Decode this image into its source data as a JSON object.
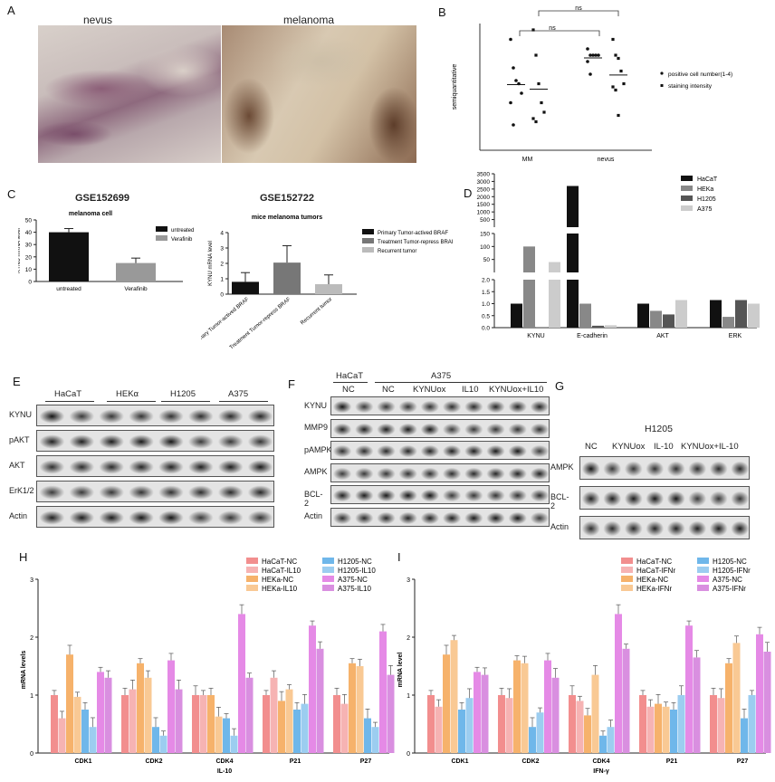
{
  "panels": {
    "A": {
      "letter": "A",
      "left_title": "nevus",
      "right_title": "melanoma"
    },
    "B": {
      "letter": "B",
      "ylabel": "semiquantitative",
      "ns1": "ns",
      "ns2": "ns",
      "legend": [
        "positive cell number(1-4)",
        "staining intensity"
      ],
      "categories": [
        "MM",
        "nevus"
      ]
    },
    "C": {
      "letter": "C",
      "title1": "GSE152699",
      "title2": "GSE152722"
    },
    "D": {
      "letter": "D"
    },
    "E": {
      "letter": "E",
      "groups": [
        "HaCaT",
        "HEKα",
        "H1205",
        "A375"
      ],
      "rows": [
        "KYNU",
        "pAKT",
        "AKT",
        "ErK1/2",
        "Actin"
      ]
    },
    "F": {
      "letter": "F",
      "top": [
        "HaCaT",
        "A375"
      ],
      "cols": [
        "NC",
        "NC",
        "KYNUox",
        "IL10",
        "KYNUox+IL10"
      ],
      "rows": [
        "KYNU",
        "MMP9",
        "pAMPK",
        "AMPK",
        "BCL-2",
        "Actin"
      ]
    },
    "G": {
      "letter": "G",
      "title": "H1205",
      "cols": [
        "NC",
        "KYNUox",
        "IL-10",
        "KYNUox+IL-10"
      ],
      "rows": [
        "AMPK",
        "BCL-2",
        "Actin"
      ]
    },
    "H": {
      "letter": "H",
      "ylabel": "mRNA levels",
      "xtitle": "IL-10"
    },
    "I": {
      "letter": "I",
      "ylabel": "mRNA level",
      "xtitle": "IFN-γ"
    }
  },
  "chart_data": [
    {
      "id": "B",
      "type": "scatter",
      "ylabel": "semiquantitative",
      "categories": [
        "MM",
        "nevus"
      ],
      "series": [
        {
          "name": "positive cell number(1-4)",
          "MM": [
            3.5,
            2.6,
            2.2,
            2.1,
            1.8,
            1.5,
            0.8
          ],
          "nevus": [
            3.2,
            3.0,
            3.0,
            3.0,
            3.0,
            2.8,
            2.4
          ]
        },
        {
          "name": "staining intensity",
          "MM": [
            3.8,
            3.0,
            2.1,
            1.5,
            1.2,
            1.0,
            0.9
          ],
          "nevus": [
            3.5,
            3.0,
            2.9,
            2.5,
            2.1,
            2.0,
            1.9,
            1.1
          ]
        }
      ]
    },
    {
      "id": "C1",
      "type": "bar",
      "title": "melanoma cell",
      "ylabel": "KYNU mRNA level",
      "ylim": [
        0,
        50
      ],
      "yticks": [
        0,
        10,
        20,
        30,
        40,
        50
      ],
      "categories": [
        "untreated",
        "Verafinib"
      ],
      "values": [
        40,
        15
      ],
      "errors": [
        3,
        4
      ],
      "legend": [
        "untreated",
        "Verafinib"
      ],
      "colors": [
        "#111111",
        "#999999"
      ]
    },
    {
      "id": "C2",
      "type": "bar",
      "title": "mice melanoma tumors",
      "ylabel": "KYNU mRNA level",
      "ylim": [
        0,
        4
      ],
      "yticks": [
        0,
        1,
        2,
        3,
        4
      ],
      "categories": [
        "Primary Tumor-actived BRAF",
        "Treatment Tumor-repress BRAF",
        "Recurrent tumor"
      ],
      "values": [
        0.8,
        2.05,
        0.65
      ],
      "errors": [
        0.6,
        1.1,
        0.6
      ],
      "legend": [
        "Primary Tumor-actived BRAF",
        "Treatment Tumor-repress BRAI",
        "Recurrent tumor"
      ],
      "colors": [
        "#111111",
        "#777777",
        "#bbbbbb"
      ]
    },
    {
      "id": "D",
      "type": "bar",
      "categories": [
        "KYNU",
        "E-cadherin",
        "AKT",
        "ERK"
      ],
      "series": [
        {
          "name": "HaCaT",
          "values": [
            1.0,
            2700,
            1.0,
            1.15
          ]
        },
        {
          "name": "HEKa",
          "values": [
            100,
            1.0,
            0.7,
            0.45
          ]
        },
        {
          "name": "H1205",
          "values": [
            0.02,
            0.08,
            0.55,
            1.15
          ]
        },
        {
          "name": "A375",
          "values": [
            40,
            0.1,
            1.15,
            1.0
          ]
        }
      ],
      "yticks_top": [
        "500",
        "1000",
        "1500",
        "2000",
        "2500",
        "3000",
        "3500"
      ],
      "yticks_mid": [
        "50",
        "100",
        "150"
      ],
      "yticks_bot": [
        "0.0",
        "0.5",
        "1.0",
        "1.5",
        "2.0"
      ],
      "colors": [
        "#111111",
        "#888888",
        "#555555",
        "#cccccc"
      ]
    },
    {
      "id": "H",
      "type": "bar",
      "ylabel": "mRNA levels",
      "xtitle": "IL-10",
      "ylim": [
        0,
        3
      ],
      "yticks": [
        0,
        1,
        2,
        3
      ],
      "categories": [
        "CDK1",
        "CDK2",
        "CDK4",
        "P21",
        "P27"
      ],
      "series": [
        {
          "name": "HaCaT-NC",
          "values": [
            1.0,
            1.0,
            1.0,
            1.0,
            1.0
          ]
        },
        {
          "name": "HaCaT-IL10",
          "values": [
            0.6,
            1.1,
            1.0,
            1.3,
            0.85
          ]
        },
        {
          "name": "HEKa-NC",
          "values": [
            1.7,
            1.55,
            1.0,
            0.9,
            1.55
          ]
        },
        {
          "name": "HEKa-IL10",
          "values": [
            0.97,
            1.3,
            0.63,
            1.1,
            1.5
          ]
        },
        {
          "name": "H1205-NC",
          "values": [
            0.75,
            0.45,
            0.6,
            0.75,
            0.6
          ]
        },
        {
          "name": "H1205-IL10",
          "values": [
            0.45,
            0.3,
            0.3,
            0.85,
            0.45
          ]
        },
        {
          "name": "A375-NC",
          "values": [
            1.4,
            1.6,
            2.4,
            2.2,
            2.1
          ]
        },
        {
          "name": "A375-IL10",
          "values": [
            1.3,
            1.1,
            1.3,
            1.8,
            1.35
          ]
        }
      ],
      "legend": [
        "HaCaT-NC",
        "HaCaT-IL10",
        "HEKa-NC",
        "HEKa-IL10",
        "H1205-NC",
        "H1205-IL10",
        "A375-NC",
        "A375-IL10"
      ]
    },
    {
      "id": "I",
      "type": "bar",
      "ylabel": "mRNA level",
      "xtitle": "IFN-γ",
      "ylim": [
        0,
        3
      ],
      "yticks": [
        0,
        1,
        2,
        3
      ],
      "categories": [
        "CDK1",
        "CDK2",
        "CDK4",
        "P21",
        "P27"
      ],
      "series": [
        {
          "name": "HaCaT-NC",
          "values": [
            1.0,
            1.0,
            1.0,
            1.0,
            1.0
          ]
        },
        {
          "name": "HaCaT-IFNr",
          "values": [
            0.8,
            0.95,
            0.9,
            0.8,
            0.95
          ]
        },
        {
          "name": "HEKa-NC",
          "values": [
            1.7,
            1.6,
            0.65,
            0.85,
            1.55
          ]
        },
        {
          "name": "HEKa-IFNr",
          "values": [
            1.95,
            1.55,
            1.35,
            0.8,
            1.9
          ]
        },
        {
          "name": "H1205-NC",
          "values": [
            0.75,
            0.45,
            0.3,
            0.75,
            0.6
          ]
        },
        {
          "name": "H1205-IFNr",
          "values": [
            0.95,
            0.7,
            0.45,
            1.0,
            1.0
          ]
        },
        {
          "name": "A375-NC",
          "values": [
            1.4,
            1.6,
            2.4,
            2.2,
            2.05
          ]
        },
        {
          "name": "A375-IFNr",
          "values": [
            1.35,
            1.3,
            1.8,
            1.65,
            1.75
          ]
        }
      ],
      "legend": [
        "HaCaT-NC",
        "HaCaT-IFNr",
        "HEKa-NC",
        "HEKa-IFNr",
        "H1205-NC",
        "H1205-IFNr",
        "A375-NC",
        "A375-IFNr"
      ]
    }
  ],
  "colors": {
    "hacat_nc": "#f28e8e",
    "hacat_tr": "#f6b3b3",
    "heka_nc": "#f6b26b",
    "heka_tr": "#f9c994",
    "h1205_nc": "#6fb7ea",
    "h1205_tr": "#9ccdf0",
    "a375_nc": "#e58ae6",
    "a375_tr": "#d98fe0"
  }
}
